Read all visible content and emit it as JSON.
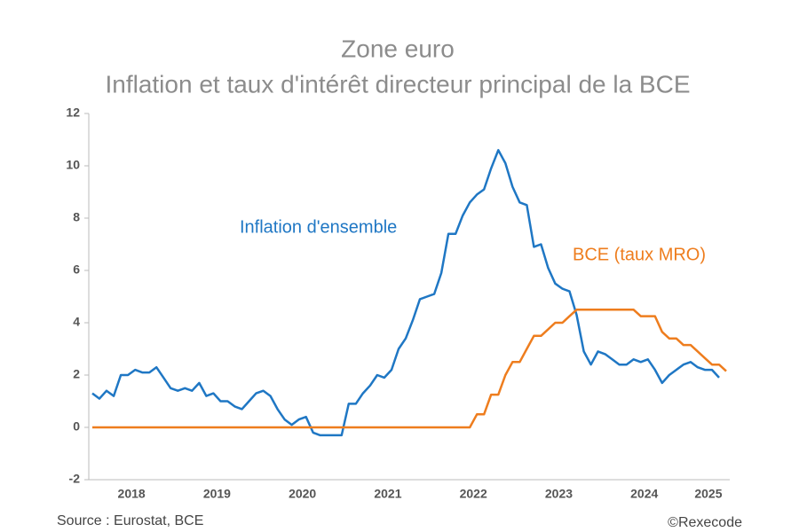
{
  "chart_data": {
    "type": "line",
    "title": "Zone euro",
    "subtitle": "Inflation et taux d'intérêt directeur principal de la BCE",
    "source": "Source : Eurostat, BCE",
    "credit": "©Rexecode",
    "x": [
      2018.042,
      2018.125,
      2018.208,
      2018.292,
      2018.375,
      2018.458,
      2018.542,
      2018.625,
      2018.708,
      2018.792,
      2018.875,
      2018.958,
      2019.042,
      2019.125,
      2019.208,
      2019.292,
      2019.375,
      2019.458,
      2019.542,
      2019.625,
      2019.708,
      2019.792,
      2019.875,
      2019.958,
      2020.042,
      2020.125,
      2020.208,
      2020.292,
      2020.375,
      2020.458,
      2020.542,
      2020.625,
      2020.708,
      2020.792,
      2020.875,
      2020.958,
      2021.042,
      2021.125,
      2021.208,
      2021.292,
      2021.375,
      2021.458,
      2021.542,
      2021.625,
      2021.708,
      2021.792,
      2021.875,
      2021.958,
      2022.042,
      2022.125,
      2022.208,
      2022.292,
      2022.375,
      2022.458,
      2022.542,
      2022.625,
      2022.708,
      2022.792,
      2022.875,
      2022.958,
      2023.042,
      2023.125,
      2023.208,
      2023.292,
      2023.375,
      2023.458,
      2023.542,
      2023.625,
      2023.708,
      2023.792,
      2023.875,
      2023.958,
      2024.042,
      2024.125,
      2024.208,
      2024.292,
      2024.375,
      2024.458,
      2024.542,
      2024.625,
      2024.708,
      2024.792,
      2024.875,
      2024.958,
      2025.042,
      2025.125,
      2025.208,
      2025.292,
      2025.375,
      2025.458
    ],
    "series": [
      {
        "name": "Inflation d'ensemble",
        "color": "#1f77c4",
        "values": [
          1.3,
          1.1,
          1.4,
          1.2,
          2.0,
          2.0,
          2.2,
          2.1,
          2.1,
          2.3,
          1.9,
          1.5,
          1.4,
          1.5,
          1.4,
          1.7,
          1.2,
          1.3,
          1.0,
          1.0,
          0.8,
          0.7,
          1.0,
          1.3,
          1.4,
          1.2,
          0.7,
          0.3,
          0.1,
          0.3,
          0.4,
          -0.2,
          -0.3,
          -0.3,
          -0.3,
          -0.3,
          0.9,
          0.9,
          1.3,
          1.6,
          2.0,
          1.9,
          2.2,
          3.0,
          3.4,
          4.1,
          4.9,
          5.0,
          5.1,
          5.9,
          7.4,
          7.4,
          8.1,
          8.6,
          8.9,
          9.1,
          9.9,
          10.6,
          10.1,
          9.2,
          8.6,
          8.5,
          6.9,
          7.0,
          6.1,
          5.5,
          5.3,
          5.2,
          4.3,
          2.9,
          2.4,
          2.9,
          2.8,
          2.6,
          2.4,
          2.4,
          2.6,
          2.5,
          2.6,
          2.2,
          1.7,
          2.0,
          2.2,
          2.4,
          2.5,
          2.3,
          2.2,
          2.2,
          1.9,
          null
        ]
      },
      {
        "name": "BCE (taux MRO)",
        "color": "#ee7d1e",
        "values": [
          0,
          0,
          0,
          0,
          0,
          0,
          0,
          0,
          0,
          0,
          0,
          0,
          0,
          0,
          0,
          0,
          0,
          0,
          0,
          0,
          0,
          0,
          0,
          0,
          0,
          0,
          0,
          0,
          0,
          0,
          0,
          0,
          0,
          0,
          0,
          0,
          0,
          0,
          0,
          0,
          0,
          0,
          0,
          0,
          0,
          0,
          0,
          0,
          0,
          0,
          0,
          0,
          0,
          0,
          0.5,
          0.5,
          1.25,
          1.25,
          2.0,
          2.5,
          2.5,
          3.0,
          3.5,
          3.5,
          3.75,
          4.0,
          4.0,
          4.25,
          4.5,
          4.5,
          4.5,
          4.5,
          4.5,
          4.5,
          4.5,
          4.5,
          4.5,
          4.25,
          4.25,
          4.25,
          3.65,
          3.4,
          3.4,
          3.15,
          3.15,
          2.9,
          2.65,
          2.4,
          2.4,
          2.15
        ]
      }
    ],
    "xlim": [
      2018,
      2025.5
    ],
    "xticks": [
      {
        "value": 2018.5,
        "label": "2018"
      },
      {
        "value": 2019.5,
        "label": "2019"
      },
      {
        "value": 2020.5,
        "label": "2020"
      },
      {
        "value": 2021.5,
        "label": "2021"
      },
      {
        "value": 2022.5,
        "label": "2022"
      },
      {
        "value": 2023.5,
        "label": "2023"
      },
      {
        "value": 2024.5,
        "label": "2024"
      },
      {
        "value": 2025.25,
        "label": "2025"
      }
    ],
    "ylim": [
      -2,
      12
    ],
    "yticks": [
      -2,
      0,
      2,
      4,
      6,
      8,
      10,
      12
    ]
  }
}
